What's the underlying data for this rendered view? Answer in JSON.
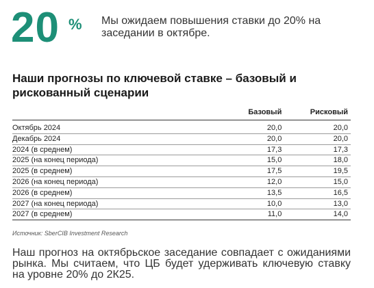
{
  "hero": {
    "value": "20",
    "unit": "%",
    "text": "Мы ожидаем повышения ставки до 20% на заседании в октябре."
  },
  "section": {
    "title": "Наши прогнозы по ключевой ставке – базовый и рискованный сценарии"
  },
  "table": {
    "headers": [
      "",
      "Базовый",
      "Рисковый"
    ],
    "rows": [
      {
        "label": "Октябрь 2024",
        "base": "20,0",
        "risk": "20,0"
      },
      {
        "label": "Декабрь 2024",
        "base": "20,0",
        "risk": "20,0"
      },
      {
        "label": "2024 (в среднем)",
        "base": "17,3",
        "risk": "17,3"
      },
      {
        "label": "2025 (на конец периода)",
        "base": "15,0",
        "risk": "18,0"
      },
      {
        "label": "2025 (в среднем)",
        "base": "17,5",
        "risk": "19,5"
      },
      {
        "label": "2026 (на конец периода)",
        "base": "12,0",
        "risk": "15,0"
      },
      {
        "label": "2026 (в среднем)",
        "base": "13,5",
        "risk": "16,5"
      },
      {
        "label": "2027 (на конец периода)",
        "base": "10,0",
        "risk": "13,0"
      },
      {
        "label": "2027 (в среднем)",
        "base": "11,0",
        "risk": "14,0"
      }
    ]
  },
  "source": "Источник: SberCIB Investment Research",
  "summary": "Наш прогноз на октябрьское заседание совпадает с ожиданиями рынка. Мы считаем, что ЦБ будет удерживать ключевую ставку на уровне 20% до 2К25.",
  "colors": {
    "accent": "#1d8f77"
  }
}
